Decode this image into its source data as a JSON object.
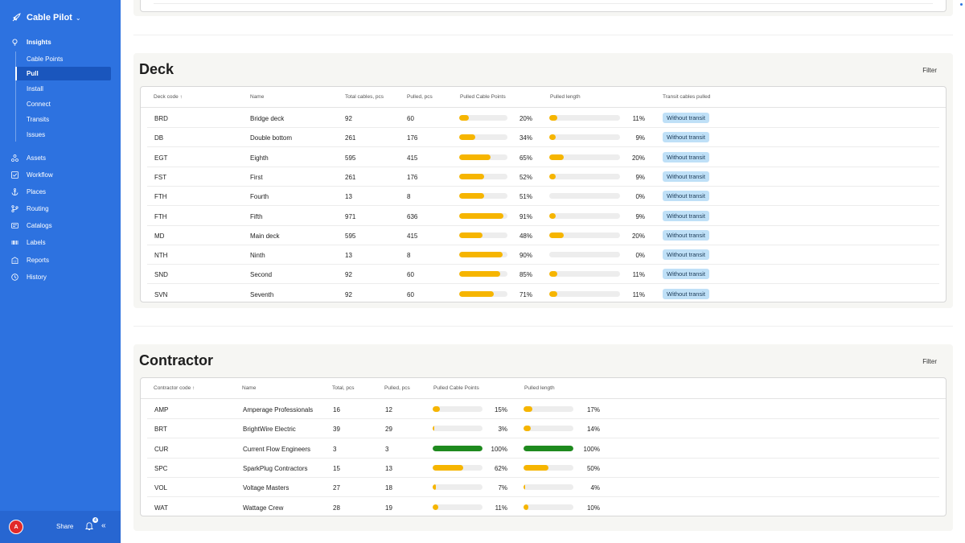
{
  "app": {
    "name": "Cable Pilot"
  },
  "sidebar": {
    "insights_label": "Insights",
    "sub_items": [
      "Cable Points",
      "Pull",
      "Install",
      "Connect",
      "Transits",
      "Issues"
    ],
    "active_sub": "Pull",
    "items": [
      "Assets",
      "Workflow",
      "Places",
      "Routing",
      "Catalogs",
      "Labels",
      "Reports",
      "History"
    ],
    "footer": {
      "avatar_initial": "A",
      "share_label": "Share",
      "notifications_count": "4"
    }
  },
  "deck": {
    "title": "Deck",
    "filter_label": "Filter",
    "columns": [
      "Deck code ↑",
      "Name",
      "Total cables, pcs",
      "Pulled, pcs",
      "Pulled Cable Points",
      "Pulled length",
      "Transit cables pulled"
    ],
    "rows": [
      {
        "code": "BRD",
        "name": "Bridge deck",
        "total": "92",
        "pulled": "60",
        "points_pct": 20,
        "points_label": "20%",
        "length_pct": 11,
        "length_label": "11%",
        "transit": "Without transit"
      },
      {
        "code": "DB",
        "name": "Double bottom",
        "total": "261",
        "pulled": "176",
        "points_pct": 34,
        "points_label": "34%",
        "length_pct": 9,
        "length_label": "9%",
        "transit": "Without transit"
      },
      {
        "code": "EGT",
        "name": "Eighth",
        "total": "595",
        "pulled": "415",
        "points_pct": 65,
        "points_label": "65%",
        "length_pct": 20,
        "length_label": "20%",
        "transit": "Without transit"
      },
      {
        "code": "FST",
        "name": "First",
        "total": "261",
        "pulled": "176",
        "points_pct": 52,
        "points_label": "52%",
        "length_pct": 9,
        "length_label": "9%",
        "transit": "Without transit"
      },
      {
        "code": "FTH",
        "name": "Fourth",
        "total": "13",
        "pulled": "8",
        "points_pct": 51,
        "points_label": "51%",
        "length_pct": 0,
        "length_label": "0%",
        "transit": "Without transit"
      },
      {
        "code": "FTH",
        "name": "Fifth",
        "total": "971",
        "pulled": "636",
        "points_pct": 91,
        "points_label": "91%",
        "length_pct": 9,
        "length_label": "9%",
        "transit": "Without transit"
      },
      {
        "code": "MD",
        "name": "Main deck",
        "total": "595",
        "pulled": "415",
        "points_pct": 48,
        "points_label": "48%",
        "length_pct": 20,
        "length_label": "20%",
        "transit": "Without transit"
      },
      {
        "code": "NTH",
        "name": "Ninth",
        "total": "13",
        "pulled": "8",
        "points_pct": 90,
        "points_label": "90%",
        "length_pct": 0,
        "length_label": "0%",
        "transit": "Without transit"
      },
      {
        "code": "SND",
        "name": "Second",
        "total": "92",
        "pulled": "60",
        "points_pct": 85,
        "points_label": "85%",
        "length_pct": 11,
        "length_label": "11%",
        "transit": "Without transit"
      },
      {
        "code": "SVN",
        "name": "Seventh",
        "total": "92",
        "pulled": "60",
        "points_pct": 71,
        "points_label": "71%",
        "length_pct": 11,
        "length_label": "11%",
        "transit": "Without transit"
      }
    ]
  },
  "contractor": {
    "title": "Contractor",
    "filter_label": "Filter",
    "columns": [
      "Contractor code ↑",
      "Name",
      "Total, pcs",
      "Pulled, pcs",
      "Pulled Cable Points",
      "Pulled length"
    ],
    "rows": [
      {
        "code": "AMP",
        "name": "Amperage Professionals",
        "total": "16",
        "pulled": "12",
        "points_pct": 15,
        "points_label": "15%",
        "length_pct": 17,
        "length_label": "17%"
      },
      {
        "code": "BRT",
        "name": "BrightWire Electric",
        "total": "39",
        "pulled": "29",
        "points_pct": 3,
        "points_label": "3%",
        "length_pct": 14,
        "length_label": "14%"
      },
      {
        "code": "CUR",
        "name": "Current Flow Engineers",
        "total": "3",
        "pulled": "3",
        "points_pct": 100,
        "points_label": "100%",
        "length_pct": 100,
        "length_label": "100%"
      },
      {
        "code": "SPC",
        "name": "SparkPlug Contractors",
        "total": "15",
        "pulled": "13",
        "points_pct": 62,
        "points_label": "62%",
        "length_pct": 50,
        "length_label": "50%"
      },
      {
        "code": "VOL",
        "name": "Voltage Masters",
        "total": "27",
        "pulled": "18",
        "points_pct": 7,
        "points_label": "7%",
        "length_pct": 4,
        "length_label": "4%"
      },
      {
        "code": "WAT",
        "name": "Wattage Crew",
        "total": "28",
        "pulled": "19",
        "points_pct": 11,
        "points_label": "11%",
        "length_pct": 10,
        "length_label": "10%"
      }
    ]
  },
  "colors": {
    "sidebar": "#2d72e0",
    "progress": "#f6b500",
    "complete": "#1e8a1e",
    "badge": "#bfe0f7"
  }
}
